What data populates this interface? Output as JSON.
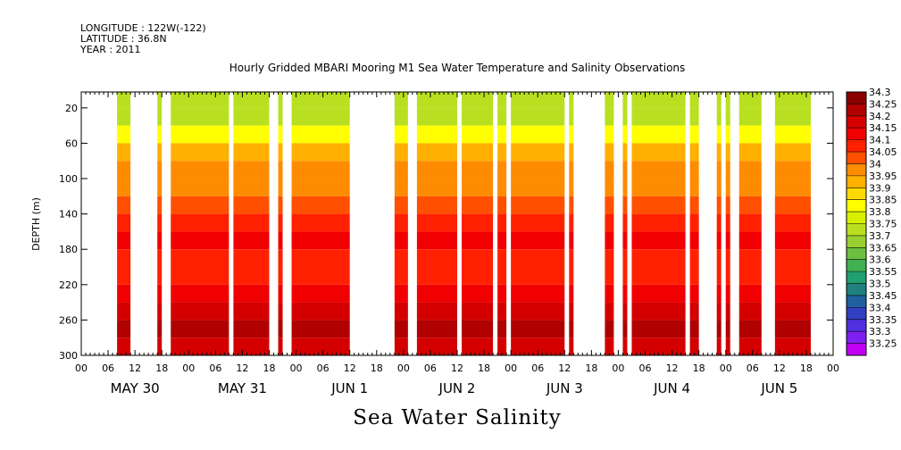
{
  "header": {
    "longitude": "LONGITUDE : 122W(-122)",
    "latitude": "LATITUDE : 36.8N",
    "year": "YEAR : 2011"
  },
  "chart_data": {
    "type": "heatmap",
    "title": "Hourly Gridded MBARI Mooring M1 Sea Water Temperature and Salinity Observations",
    "xlabel": "Sea Water Salinity",
    "ylabel": "DEPTH (m)",
    "y_ticks": [
      20,
      60,
      100,
      140,
      180,
      220,
      260,
      300
    ],
    "ylim": [
      300,
      2
    ],
    "y_inverted": true,
    "x_hour_ticks": [
      "00",
      "06",
      "12",
      "18",
      "00",
      "06",
      "12",
      "18",
      "00",
      "06",
      "12",
      "18",
      "00",
      "06",
      "12",
      "18",
      "00",
      "06",
      "12",
      "18",
      "00",
      "06",
      "12",
      "18",
      "00",
      "06",
      "12",
      "18",
      "00"
    ],
    "x_day_labels": [
      "MAY 30",
      "MAY 31",
      "JUN  1",
      "JUN  2",
      "JUN  3",
      "JUN  4",
      "JUN  5"
    ],
    "xlim_hours": [
      0,
      168
    ],
    "colorbar": {
      "levels": [
        "34.3",
        "34.25",
        "34.2",
        "34.15",
        "34.1",
        "34.05",
        "34",
        "33.95",
        "33.9",
        "33.85",
        "33.8",
        "33.75",
        "33.7",
        "33.65",
        "33.6",
        "33.55",
        "33.5",
        "33.45",
        "33.4",
        "33.35",
        "33.3",
        "33.25"
      ],
      "colors": [
        "#8b0000",
        "#b00000",
        "#d40000",
        "#f00000",
        "#ff2000",
        "#ff5000",
        "#ff8c00",
        "#ffb000",
        "#ffd800",
        "#ffff00",
        "#d8f000",
        "#b8e020",
        "#98d030",
        "#6cc040",
        "#40b050",
        "#20a070",
        "#208080",
        "#2060a0",
        "#3040c0",
        "#5030e0",
        "#8020f0",
        "#c000f0"
      ]
    },
    "depth_profile": [
      {
        "depth": 2,
        "value": 33.75
      },
      {
        "depth": 20,
        "value": 33.75
      },
      {
        "depth": 40,
        "value": 33.85
      },
      {
        "depth": 60,
        "value": 33.95
      },
      {
        "depth": 80,
        "value": 34.0
      },
      {
        "depth": 100,
        "value": 34.0
      },
      {
        "depth": 120,
        "value": 34.05
      },
      {
        "depth": 140,
        "value": 34.1
      },
      {
        "depth": 160,
        "value": 34.15
      },
      {
        "depth": 180,
        "value": 34.1
      },
      {
        "depth": 200,
        "value": 34.1
      },
      {
        "depth": 220,
        "value": 34.15
      },
      {
        "depth": 240,
        "value": 34.2
      },
      {
        "depth": 260,
        "value": 34.25
      },
      {
        "depth": 280,
        "value": 34.2
      },
      {
        "depth": 300,
        "value": 34.2
      }
    ],
    "data_gaps_hours": [
      [
        0,
        8
      ],
      [
        11,
        17
      ],
      [
        18,
        20
      ],
      [
        33,
        34
      ],
      [
        42,
        44
      ],
      [
        45,
        47
      ],
      [
        60,
        70
      ],
      [
        73,
        75
      ],
      [
        84,
        85
      ],
      [
        92,
        93
      ],
      [
        95,
        96
      ],
      [
        108,
        109
      ],
      [
        110,
        117
      ],
      [
        119,
        121
      ],
      [
        122,
        123
      ],
      [
        135,
        136
      ],
      [
        138,
        142
      ],
      [
        143,
        144
      ],
      [
        145,
        147
      ],
      [
        152,
        155
      ],
      [
        163,
        168
      ]
    ]
  }
}
